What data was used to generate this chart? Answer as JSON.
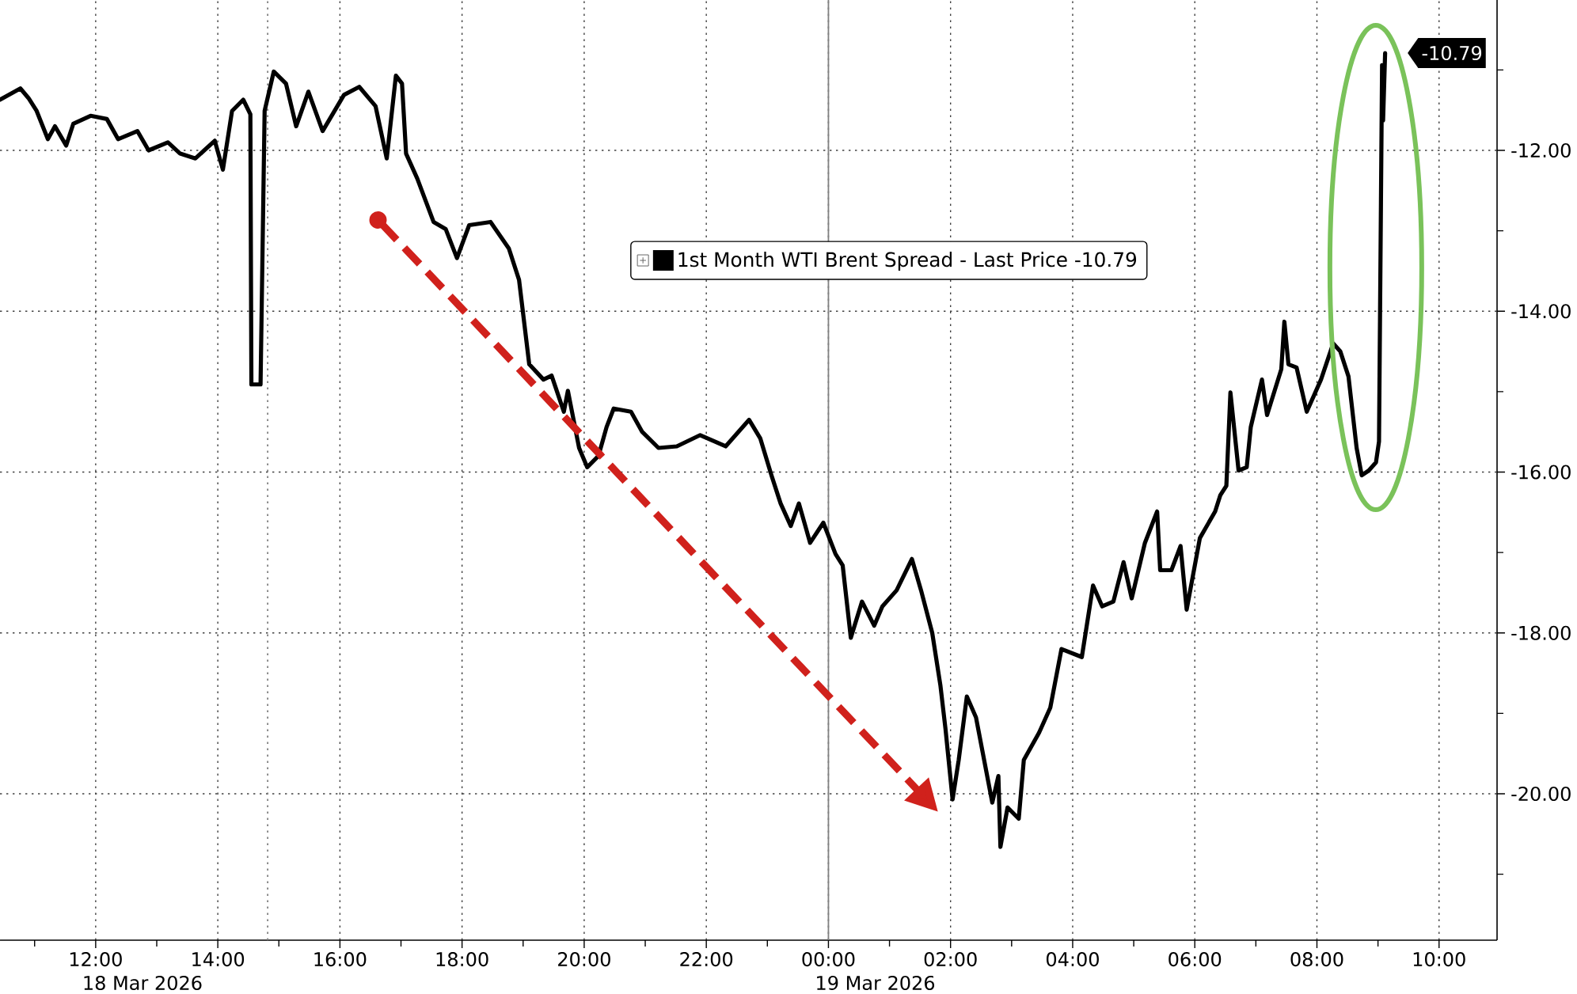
{
  "chart_data": {
    "type": "line",
    "xlim": [
      "2026-03-18T10:26",
      "2026-03-19T10:57"
    ],
    "ylim": [
      -21.82,
      -10.13
    ],
    "xticks": [
      {
        "value": "2026-03-18T11:00",
        "label": null
      },
      {
        "value": "2026-03-18T12:00",
        "label": "12:00"
      },
      {
        "value": "2026-03-18T13:00",
        "label": null
      },
      {
        "value": "2026-03-18T14:00",
        "label": "14:00"
      },
      {
        "value": "2026-03-18T15:00",
        "label": null
      },
      {
        "value": "2026-03-18T16:00",
        "label": "16:00"
      },
      {
        "value": "2026-03-18T17:00",
        "label": null
      },
      {
        "value": "2026-03-18T18:00",
        "label": "18:00"
      },
      {
        "value": "2026-03-18T19:00",
        "label": null
      },
      {
        "value": "2026-03-18T20:00",
        "label": "20:00"
      },
      {
        "value": "2026-03-18T21:00",
        "label": null
      },
      {
        "value": "2026-03-18T22:00",
        "label": "22:00"
      },
      {
        "value": "2026-03-18T23:00",
        "label": null
      },
      {
        "value": "2026-03-19T00:00",
        "label": "00:00"
      },
      {
        "value": "2026-03-19T01:00",
        "label": null
      },
      {
        "value": "2026-03-19T02:00",
        "label": "02:00"
      },
      {
        "value": "2026-03-19T03:00",
        "label": null
      },
      {
        "value": "2026-03-19T04:00",
        "label": "04:00"
      },
      {
        "value": "2026-03-19T05:00",
        "label": null
      },
      {
        "value": "2026-03-19T06:00",
        "label": "06:00"
      },
      {
        "value": "2026-03-19T07:00",
        "label": null
      },
      {
        "value": "2026-03-19T08:00",
        "label": "08:00"
      },
      {
        "value": "2026-03-19T09:00",
        "label": null
      },
      {
        "value": "2026-03-19T10:00",
        "label": "10:00"
      }
    ],
    "yticks": [
      {
        "value": -11,
        "label": null
      },
      {
        "value": -12,
        "label": "-12.00"
      },
      {
        "value": -13,
        "label": null
      },
      {
        "value": -14,
        "label": "-14.00"
      },
      {
        "value": -15,
        "label": null
      },
      {
        "value": -16,
        "label": "-16.00"
      },
      {
        "value": -17,
        "label": null
      },
      {
        "value": -18,
        "label": "-18.00"
      },
      {
        "value": -19,
        "label": null
      },
      {
        "value": -20,
        "label": "-20.00"
      },
      {
        "value": -21,
        "label": null
      }
    ],
    "grid": true,
    "legend": "top",
    "series": [
      {
        "name": "1st Month WTI Brent Spread - Last Price -10.79",
        "color": "#000000",
        "x": [
          "2026-03-18T10:26",
          "2026-03-18T10:46",
          "2026-03-18T10:54",
          "2026-03-18T11:02",
          "2026-03-18T11:13",
          "2026-03-18T11:20",
          "2026-03-18T11:31",
          "2026-03-18T11:38",
          "2026-03-18T11:55",
          "2026-03-18T12:11",
          "2026-03-18T12:22",
          "2026-03-18T12:41",
          "2026-03-18T12:52",
          "2026-03-18T13:11",
          "2026-03-18T13:23",
          "2026-03-18T13:38",
          "2026-03-18T13:57",
          "2026-03-18T14:05",
          "2026-03-18T14:14",
          "2026-03-18T14:25",
          "2026-03-18T14:32",
          "2026-03-18T14:33",
          "2026-03-18T14:42",
          "2026-03-18T14:46",
          "2026-03-18T14:55",
          "2026-03-18T15:07",
          "2026-03-18T15:17",
          "2026-03-18T15:29",
          "2026-03-18T15:43",
          "2026-03-18T16:04",
          "2026-03-18T16:19",
          "2026-03-18T16:35",
          "2026-03-18T16:46",
          "2026-03-18T16:55",
          "2026-03-18T17:01",
          "2026-03-18T17:05",
          "2026-03-18T17:16",
          "2026-03-18T17:32",
          "2026-03-18T17:44",
          "2026-03-18T17:55",
          "2026-03-18T18:07",
          "2026-03-18T18:28",
          "2026-03-18T18:46",
          "2026-03-18T18:56",
          "2026-03-18T19:06",
          "2026-03-18T19:20",
          "2026-03-18T19:28",
          "2026-03-18T19:40",
          "2026-03-18T19:44",
          "2026-03-18T19:55",
          "2026-03-18T20:03",
          "2026-03-18T20:14",
          "2026-03-18T20:22",
          "2026-03-18T20:29",
          "2026-03-18T20:46",
          "2026-03-18T20:57",
          "2026-03-18T21:13",
          "2026-03-18T21:31",
          "2026-03-18T21:54",
          "2026-03-18T22:19",
          "2026-03-18T22:42",
          "2026-03-18T22:53",
          "2026-03-18T23:04",
          "2026-03-18T23:13",
          "2026-03-18T23:23",
          "2026-03-18T23:31",
          "2026-03-18T23:42",
          "2026-03-18T23:55",
          "2026-03-19T00:07",
          "2026-03-19T00:14",
          "2026-03-19T00:22",
          "2026-03-19T00:33",
          "2026-03-19T00:45",
          "2026-03-19T00:53",
          "2026-03-19T01:07",
          "2026-03-19T01:22",
          "2026-03-19T01:31",
          "2026-03-19T01:42",
          "2026-03-19T01:50",
          "2026-03-19T01:55",
          "2026-03-19T02:02",
          "2026-03-19T02:08",
          "2026-03-19T02:16",
          "2026-03-19T02:25",
          "2026-03-19T02:33",
          "2026-03-19T02:41",
          "2026-03-19T02:47",
          "2026-03-19T02:49",
          "2026-03-19T02:56",
          "2026-03-19T03:07",
          "2026-03-19T03:12",
          "2026-03-19T03:27",
          "2026-03-19T03:38",
          "2026-03-19T03:49",
          "2026-03-19T04:09",
          "2026-03-19T04:20",
          "2026-03-19T04:29",
          "2026-03-19T04:40",
          "2026-03-19T04:50",
          "2026-03-19T04:58",
          "2026-03-19T05:11",
          "2026-03-19T05:23",
          "2026-03-19T05:26",
          "2026-03-19T05:37",
          "2026-03-19T05:46",
          "2026-03-19T05:52",
          "2026-03-19T06:05",
          "2026-03-19T06:20",
          "2026-03-19T06:25",
          "2026-03-19T06:31",
          "2026-03-19T06:35",
          "2026-03-19T06:43",
          "2026-03-19T06:51",
          "2026-03-19T06:55",
          "2026-03-19T07:06",
          "2026-03-19T07:11",
          "2026-03-19T07:25",
          "2026-03-19T07:28",
          "2026-03-19T07:32",
          "2026-03-19T07:40",
          "2026-03-19T07:50",
          "2026-03-19T08:04",
          "2026-03-19T08:16",
          "2026-03-19T08:23",
          "2026-03-19T08:31",
          "2026-03-19T08:39",
          "2026-03-19T08:44",
          "2026-03-19T08:51",
          "2026-03-19T08:58",
          "2026-03-19T09:01",
          "2026-03-19T09:04",
          "2026-03-19T09:05",
          "2026-03-19T09:07"
        ],
        "values": [
          -11.37,
          -11.23,
          -11.35,
          -11.51,
          -11.86,
          -11.7,
          -11.94,
          -11.67,
          -11.57,
          -11.61,
          -11.86,
          -11.76,
          -12.0,
          -11.9,
          -12.04,
          -12.1,
          -11.88,
          -12.24,
          -11.51,
          -11.37,
          -11.55,
          -14.91,
          -14.91,
          -11.51,
          -11.02,
          -11.17,
          -11.7,
          -11.27,
          -11.76,
          -11.31,
          -11.21,
          -11.45,
          -12.1,
          -11.07,
          -11.17,
          -12.04,
          -12.35,
          -12.89,
          -12.98,
          -13.34,
          -12.93,
          -12.89,
          -13.22,
          -13.61,
          -14.66,
          -14.85,
          -14.8,
          -15.25,
          -14.99,
          -15.7,
          -15.94,
          -15.8,
          -15.44,
          -15.21,
          -15.25,
          -15.5,
          -15.7,
          -15.68,
          -15.54,
          -15.68,
          -15.35,
          -15.58,
          -16.04,
          -16.39,
          -16.67,
          -16.39,
          -16.88,
          -16.63,
          -17.02,
          -17.16,
          -18.06,
          -17.61,
          -17.91,
          -17.67,
          -17.47,
          -17.08,
          -17.47,
          -18.0,
          -18.65,
          -19.19,
          -20.07,
          -19.58,
          -18.79,
          -19.05,
          -19.58,
          -20.11,
          -19.78,
          -20.66,
          -20.17,
          -20.31,
          -19.58,
          -19.24,
          -18.93,
          -18.2,
          -18.3,
          -17.41,
          -17.67,
          -17.61,
          -17.12,
          -17.57,
          -16.88,
          -16.49,
          -17.22,
          -17.22,
          -16.92,
          -17.71,
          -16.82,
          -16.49,
          -16.29,
          -16.17,
          -15.01,
          -15.98,
          -15.94,
          -15.44,
          -14.85,
          -15.29,
          -14.72,
          -14.13,
          -14.66,
          -14.7,
          -15.25,
          -14.85,
          -14.4,
          -14.5,
          -14.81,
          -15.7,
          -16.04,
          -15.98,
          -15.88,
          -15.62,
          -10.94,
          -11.63,
          -10.79
        ]
      }
    ],
    "ref_lines": [
      {
        "axis": "x",
        "value": "2026-03-18T14:49",
        "color": "#808080",
        "line_style": "dotted"
      },
      {
        "axis": "x",
        "value": "2026-03-19T00:00",
        "color": "#808080"
      }
    ],
    "annotations": [
      "18 Mar 2026",
      "19 Mar 2026",
      {
        "text": "-10.79",
        "x": "2026-03-19T09:07",
        "y": -10.79
      }
    ]
  }
}
